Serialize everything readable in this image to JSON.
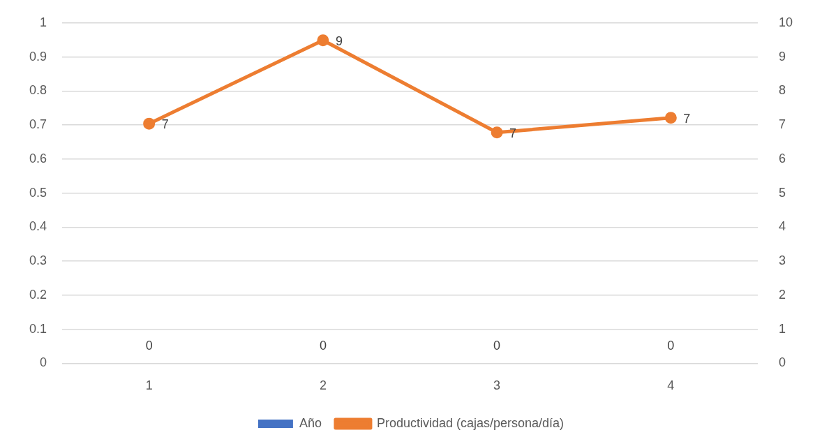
{
  "chart_data": {
    "type": "bar",
    "categories": [
      "1",
      "2",
      "3",
      "4"
    ],
    "series": [
      {
        "name": "Año",
        "color": "#4472c4",
        "values": [
          0,
          0,
          0,
          0
        ],
        "value_labels": [
          "0",
          "0",
          "0",
          "0"
        ]
      },
      {
        "name": "Productividad (cajas/persona/día)",
        "type": "line",
        "axis": "y2",
        "color": "#ed7d31",
        "values": [
          7.04,
          9.49,
          6.78,
          7.21
        ],
        "value_labels": [
          "7",
          "9",
          "7",
          "7"
        ],
        "marker": "circle"
      }
    ],
    "ylim": [
      0,
      1
    ],
    "yticks": [
      0,
      0.1,
      0.2,
      0.3,
      0.4,
      0.5,
      0.6,
      0.7,
      0.8,
      0.9,
      1
    ],
    "y2lim": [
      0,
      10
    ],
    "y2ticks": [
      0,
      1,
      2,
      3,
      4,
      5,
      6,
      7,
      8,
      9,
      10
    ],
    "grid": "y",
    "legend": "bottom"
  }
}
